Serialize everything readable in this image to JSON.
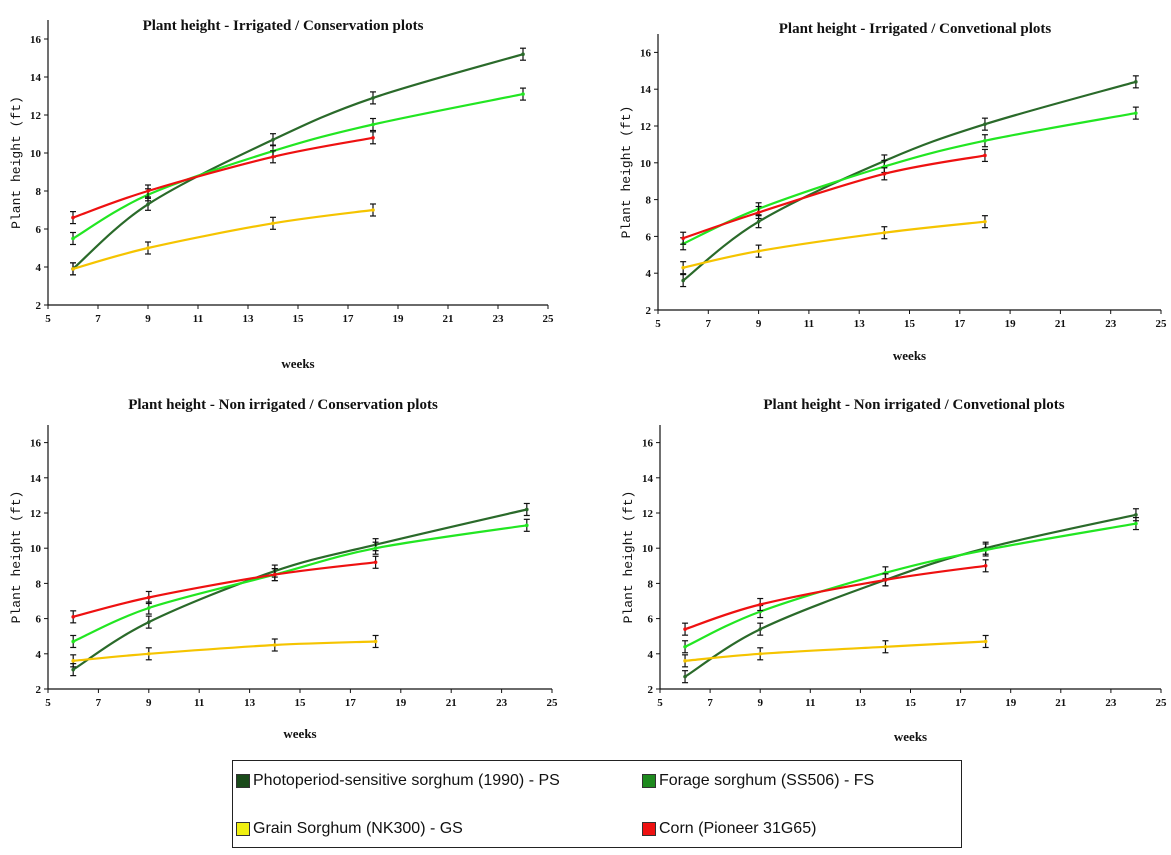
{
  "legend": [
    {
      "label": "Photoperiod-sensitive sorghum (1990) - PS",
      "color": "#1a4a1a"
    },
    {
      "label": "Forage sorghum (SS506) - FS",
      "color": "#1e8a1e"
    },
    {
      "label": "Grain Sorghum (NK300) - GS",
      "color": "#f0f010"
    },
    {
      "label": "Corn (Pioneer 31G65)",
      "color": "#ee1111"
    }
  ],
  "series_colors": {
    "PS": "#2a6a2a",
    "FS": "#22e622",
    "GS": "#f5c400",
    "Corn": "#ee1111"
  },
  "chart_data": [
    {
      "type": "line",
      "title": "Plant height - Irrigated / Conservation plots",
      "xlabel": "weeks",
      "ylabel": "Plant height (ft)",
      "xlim": [
        5,
        25
      ],
      "ylim": [
        2,
        17
      ],
      "xticks": [
        5,
        7,
        9,
        11,
        13,
        15,
        17,
        19,
        21,
        23,
        25
      ],
      "yticks": [
        2,
        4,
        6,
        8,
        10,
        12,
        14,
        16
      ],
      "series": [
        {
          "key": "PS",
          "x": [
            6,
            9,
            14,
            18,
            24
          ],
          "y": [
            3.9,
            7.3,
            10.7,
            12.9,
            15.2
          ]
        },
        {
          "key": "FS",
          "x": [
            6,
            9,
            14,
            18,
            24
          ],
          "y": [
            5.5,
            7.8,
            10.1,
            11.5,
            13.1
          ]
        },
        {
          "key": "Corn",
          "x": [
            6,
            9,
            14,
            18
          ],
          "y": [
            6.6,
            8.0,
            9.8,
            10.8
          ]
        },
        {
          "key": "GS",
          "x": [
            6,
            9,
            14,
            18
          ],
          "y": [
            3.9,
            5.0,
            6.3,
            7.0
          ]
        }
      ]
    },
    {
      "type": "line",
      "title": "Plant height - Irrigated / Convetional plots",
      "xlabel": "weeks",
      "ylabel": "Plant height (ft)",
      "xlim": [
        5,
        25
      ],
      "ylim": [
        2,
        17
      ],
      "xticks": [
        5,
        7,
        9,
        11,
        13,
        15,
        17,
        19,
        21,
        23,
        25
      ],
      "yticks": [
        2,
        4,
        6,
        8,
        10,
        12,
        14,
        16
      ],
      "series": [
        {
          "key": "PS",
          "x": [
            6,
            9,
            14,
            18,
            24
          ],
          "y": [
            3.6,
            6.8,
            10.1,
            12.1,
            14.4
          ]
        },
        {
          "key": "FS",
          "x": [
            6,
            9,
            14,
            18,
            24
          ],
          "y": [
            5.6,
            7.5,
            9.8,
            11.2,
            12.7
          ]
        },
        {
          "key": "Corn",
          "x": [
            6,
            9,
            14,
            18
          ],
          "y": [
            5.9,
            7.3,
            9.4,
            10.4
          ]
        },
        {
          "key": "GS",
          "x": [
            6,
            9,
            14,
            18
          ],
          "y": [
            4.3,
            5.2,
            6.2,
            6.8
          ]
        }
      ]
    },
    {
      "type": "line",
      "title": "Plant height - Non irrigated / Conservation plots",
      "xlabel": "weeks",
      "ylabel": "Plant height (ft)",
      "xlim": [
        5,
        25
      ],
      "ylim": [
        2,
        17
      ],
      "xticks": [
        5,
        7,
        9,
        11,
        13,
        15,
        17,
        19,
        21,
        23,
        25
      ],
      "yticks": [
        2,
        4,
        6,
        8,
        10,
        12,
        14,
        16
      ],
      "series": [
        {
          "key": "PS",
          "x": [
            6,
            9,
            14,
            18,
            24
          ],
          "y": [
            3.1,
            5.8,
            8.7,
            10.2,
            12.2
          ]
        },
        {
          "key": "FS",
          "x": [
            6,
            9,
            14,
            18,
            24
          ],
          "y": [
            4.7,
            6.6,
            8.5,
            10.0,
            11.3
          ]
        },
        {
          "key": "Corn",
          "x": [
            6,
            9,
            14,
            18
          ],
          "y": [
            6.1,
            7.2,
            8.5,
            9.2
          ]
        },
        {
          "key": "GS",
          "x": [
            6,
            9,
            14,
            18
          ],
          "y": [
            3.6,
            4.0,
            4.5,
            4.7
          ]
        }
      ]
    },
    {
      "type": "line",
      "title": "Plant height - Non irrigated / Convetional plots",
      "xlabel": "weeks",
      "ylabel": "Plant height (ft)",
      "xlim": [
        5,
        25
      ],
      "ylim": [
        2,
        17
      ],
      "xticks": [
        5,
        7,
        9,
        11,
        13,
        15,
        17,
        19,
        21,
        23,
        25
      ],
      "yticks": [
        2,
        4,
        6,
        8,
        10,
        12,
        14,
        16
      ],
      "series": [
        {
          "key": "PS",
          "x": [
            6,
            9,
            14,
            18,
            24
          ],
          "y": [
            2.7,
            5.4,
            8.2,
            10.0,
            11.9
          ]
        },
        {
          "key": "FS",
          "x": [
            6,
            9,
            14,
            18,
            24
          ],
          "y": [
            4.4,
            6.4,
            8.6,
            9.9,
            11.4
          ]
        },
        {
          "key": "Corn",
          "x": [
            6,
            9,
            14,
            18
          ],
          "y": [
            5.4,
            6.8,
            8.2,
            9.0
          ]
        },
        {
          "key": "GS",
          "x": [
            6,
            9,
            14,
            18
          ],
          "y": [
            3.6,
            4.0,
            4.4,
            4.7
          ]
        }
      ]
    }
  ]
}
